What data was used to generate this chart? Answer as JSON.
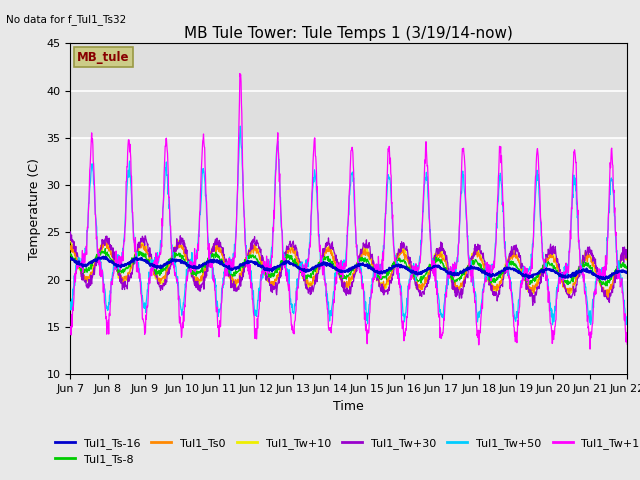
{
  "title": "MB Tule Tower: Tule Temps 1 (3/19/14-now)",
  "no_data_text": "No data for f_Tul1_Ts32",
  "ylabel": "Temperature (C)",
  "xlabel": "Time",
  "ylim": [
    10,
    45
  ],
  "xlim": [
    0,
    15
  ],
  "background_color": "#e8e8e8",
  "plot_bg_color": "#e8e8e8",
  "upper_band_color": "#d4d4d4",
  "grid_color": "#ffffff",
  "x_tick_labels": [
    "Jun 7",
    "Jun 8",
    "Jun 9",
    "Jun 10",
    "Jun 11",
    "Jun 12",
    "Jun 13",
    "Jun 14",
    "Jun 15",
    "Jun 16",
    "Jun 17",
    "Jun 18",
    "Jun 19",
    "Jun 20",
    "Jun 21",
    "Jun 22"
  ],
  "series_colors": {
    "Tul1_Ts-16": "#0000cc",
    "Tul1_Ts-8": "#00cc00",
    "Tul1_Ts0": "#ff8800",
    "Tul1_Tw+10": "#eeee00",
    "Tul1_Tw+30": "#9900cc",
    "Tul1_Tw+50": "#00ccff",
    "Tul1_Tw+100": "#ff00ff"
  },
  "legend_box_facecolor": "#cccc88",
  "legend_box_edgecolor": "#999944",
  "legend_box_text": "MB_tule",
  "legend_box_text_color": "#880000",
  "title_fontsize": 11,
  "axis_label_fontsize": 9,
  "tick_fontsize": 8,
  "legend_fontsize": 8
}
